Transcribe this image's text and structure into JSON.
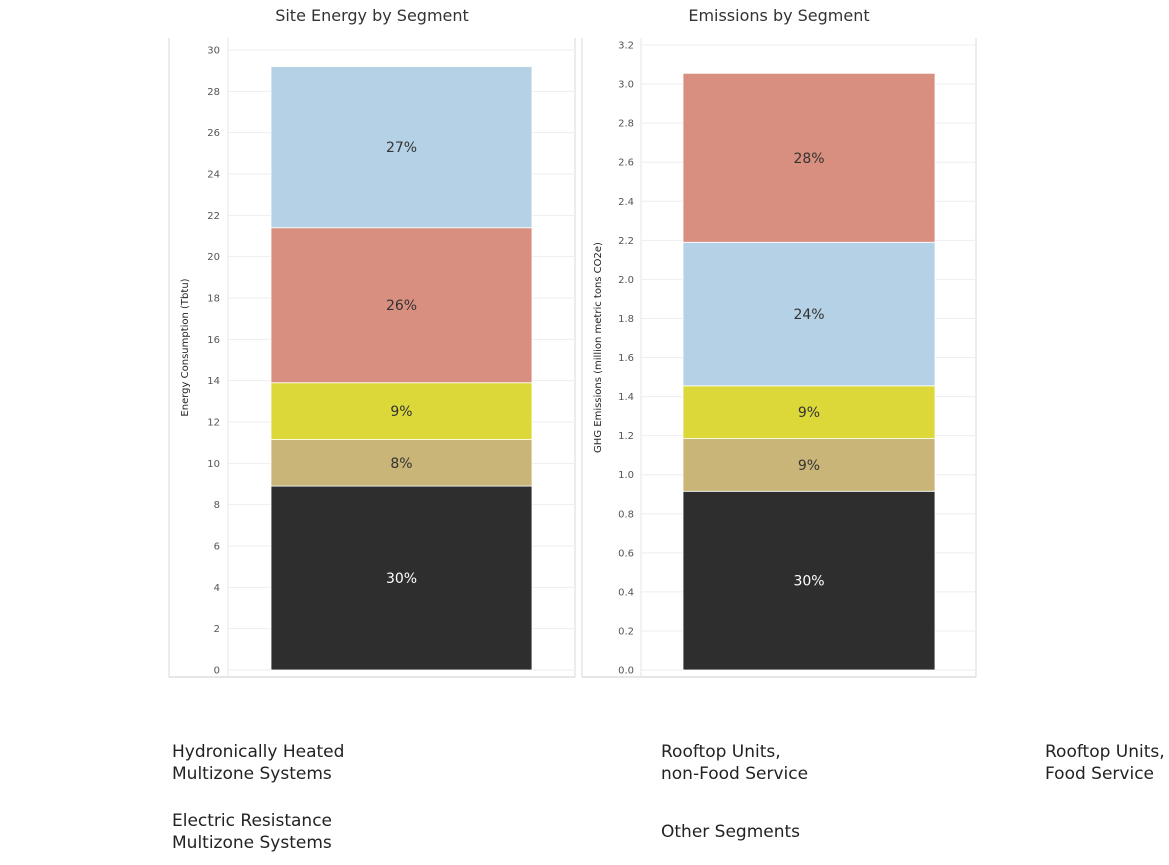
{
  "colors": {
    "hydronic": "#b5d1e5",
    "rtu_nonfood": "#d88f7f",
    "rtu_food": "#dcd83a",
    "electric": "#c9b577",
    "other": "#2e2e2e",
    "icon_stroke": "#ffffff"
  },
  "chart_data": [
    {
      "type": "bar",
      "title": "Site Energy by Segment",
      "ylabel": "Energy Consumption (Tbtu)",
      "ylim": [
        0,
        30
      ],
      "yticks": [
        "0",
        "2",
        "4",
        "6",
        "8",
        "10",
        "12",
        "14",
        "16",
        "18",
        "20",
        "22",
        "24",
        "26",
        "28",
        "30"
      ],
      "stacking": "stacked",
      "grid": true,
      "segments": [
        {
          "name": "Other Segments",
          "value": 8.9,
          "label": "30%",
          "color_key": "other"
        },
        {
          "name": "Electric Resistance Multizone Systems",
          "value": 2.25,
          "label": "8%",
          "color_key": "electric"
        },
        {
          "name": "Rooftop Units, Food Service",
          "value": 2.75,
          "label": "9%",
          "color_key": "rtu_food"
        },
        {
          "name": "Rooftop Units, non-Food Service",
          "value": 7.5,
          "label": "26%",
          "color_key": "rtu_nonfood"
        },
        {
          "name": "Hydronically Heated Multizone Systems",
          "value": 7.8,
          "label": "27%",
          "color_key": "hydronic"
        }
      ]
    },
    {
      "type": "bar",
      "title": "Emissions by Segment",
      "ylabel": "GHG Emissions (million metric tons CO2e)",
      "ylim": [
        0,
        3.2
      ],
      "yticks": [
        "0.0",
        "0.2",
        "0.4",
        "0.6",
        "0.8",
        "1.0",
        "1.2",
        "1.4",
        "1.6",
        "1.8",
        "2.0",
        "2.2",
        "2.4",
        "2.6",
        "2.8",
        "3.0",
        "3.2"
      ],
      "stacking": "stacked",
      "grid": true,
      "segments": [
        {
          "name": "Other Segments",
          "value": 0.915,
          "label": "30%",
          "color_key": "other"
        },
        {
          "name": "Electric Resistance Multizone Systems",
          "value": 0.27,
          "label": "9%",
          "color_key": "electric"
        },
        {
          "name": "Rooftop Units, Food Service",
          "value": 0.27,
          "label": "9%",
          "color_key": "rtu_food"
        },
        {
          "name": "Hydronically Heated Multizone Systems",
          "value": 0.735,
          "label": "24%",
          "color_key": "hydronic"
        },
        {
          "name": "Rooftop Units, non-Food Service",
          "value": 0.865,
          "label": "28%",
          "color_key": "rtu_nonfood"
        }
      ]
    }
  ],
  "legend": {
    "hydronic": "Hydronically Heated\nMultizone Systems",
    "electric": "Electric Resistance\nMultizone Systems",
    "rtu_nonfood": "Rooftop Units,\nnon-Food Service",
    "other": "Other  Segments",
    "rtu_food": "Rooftop Units,\nFood Service"
  }
}
